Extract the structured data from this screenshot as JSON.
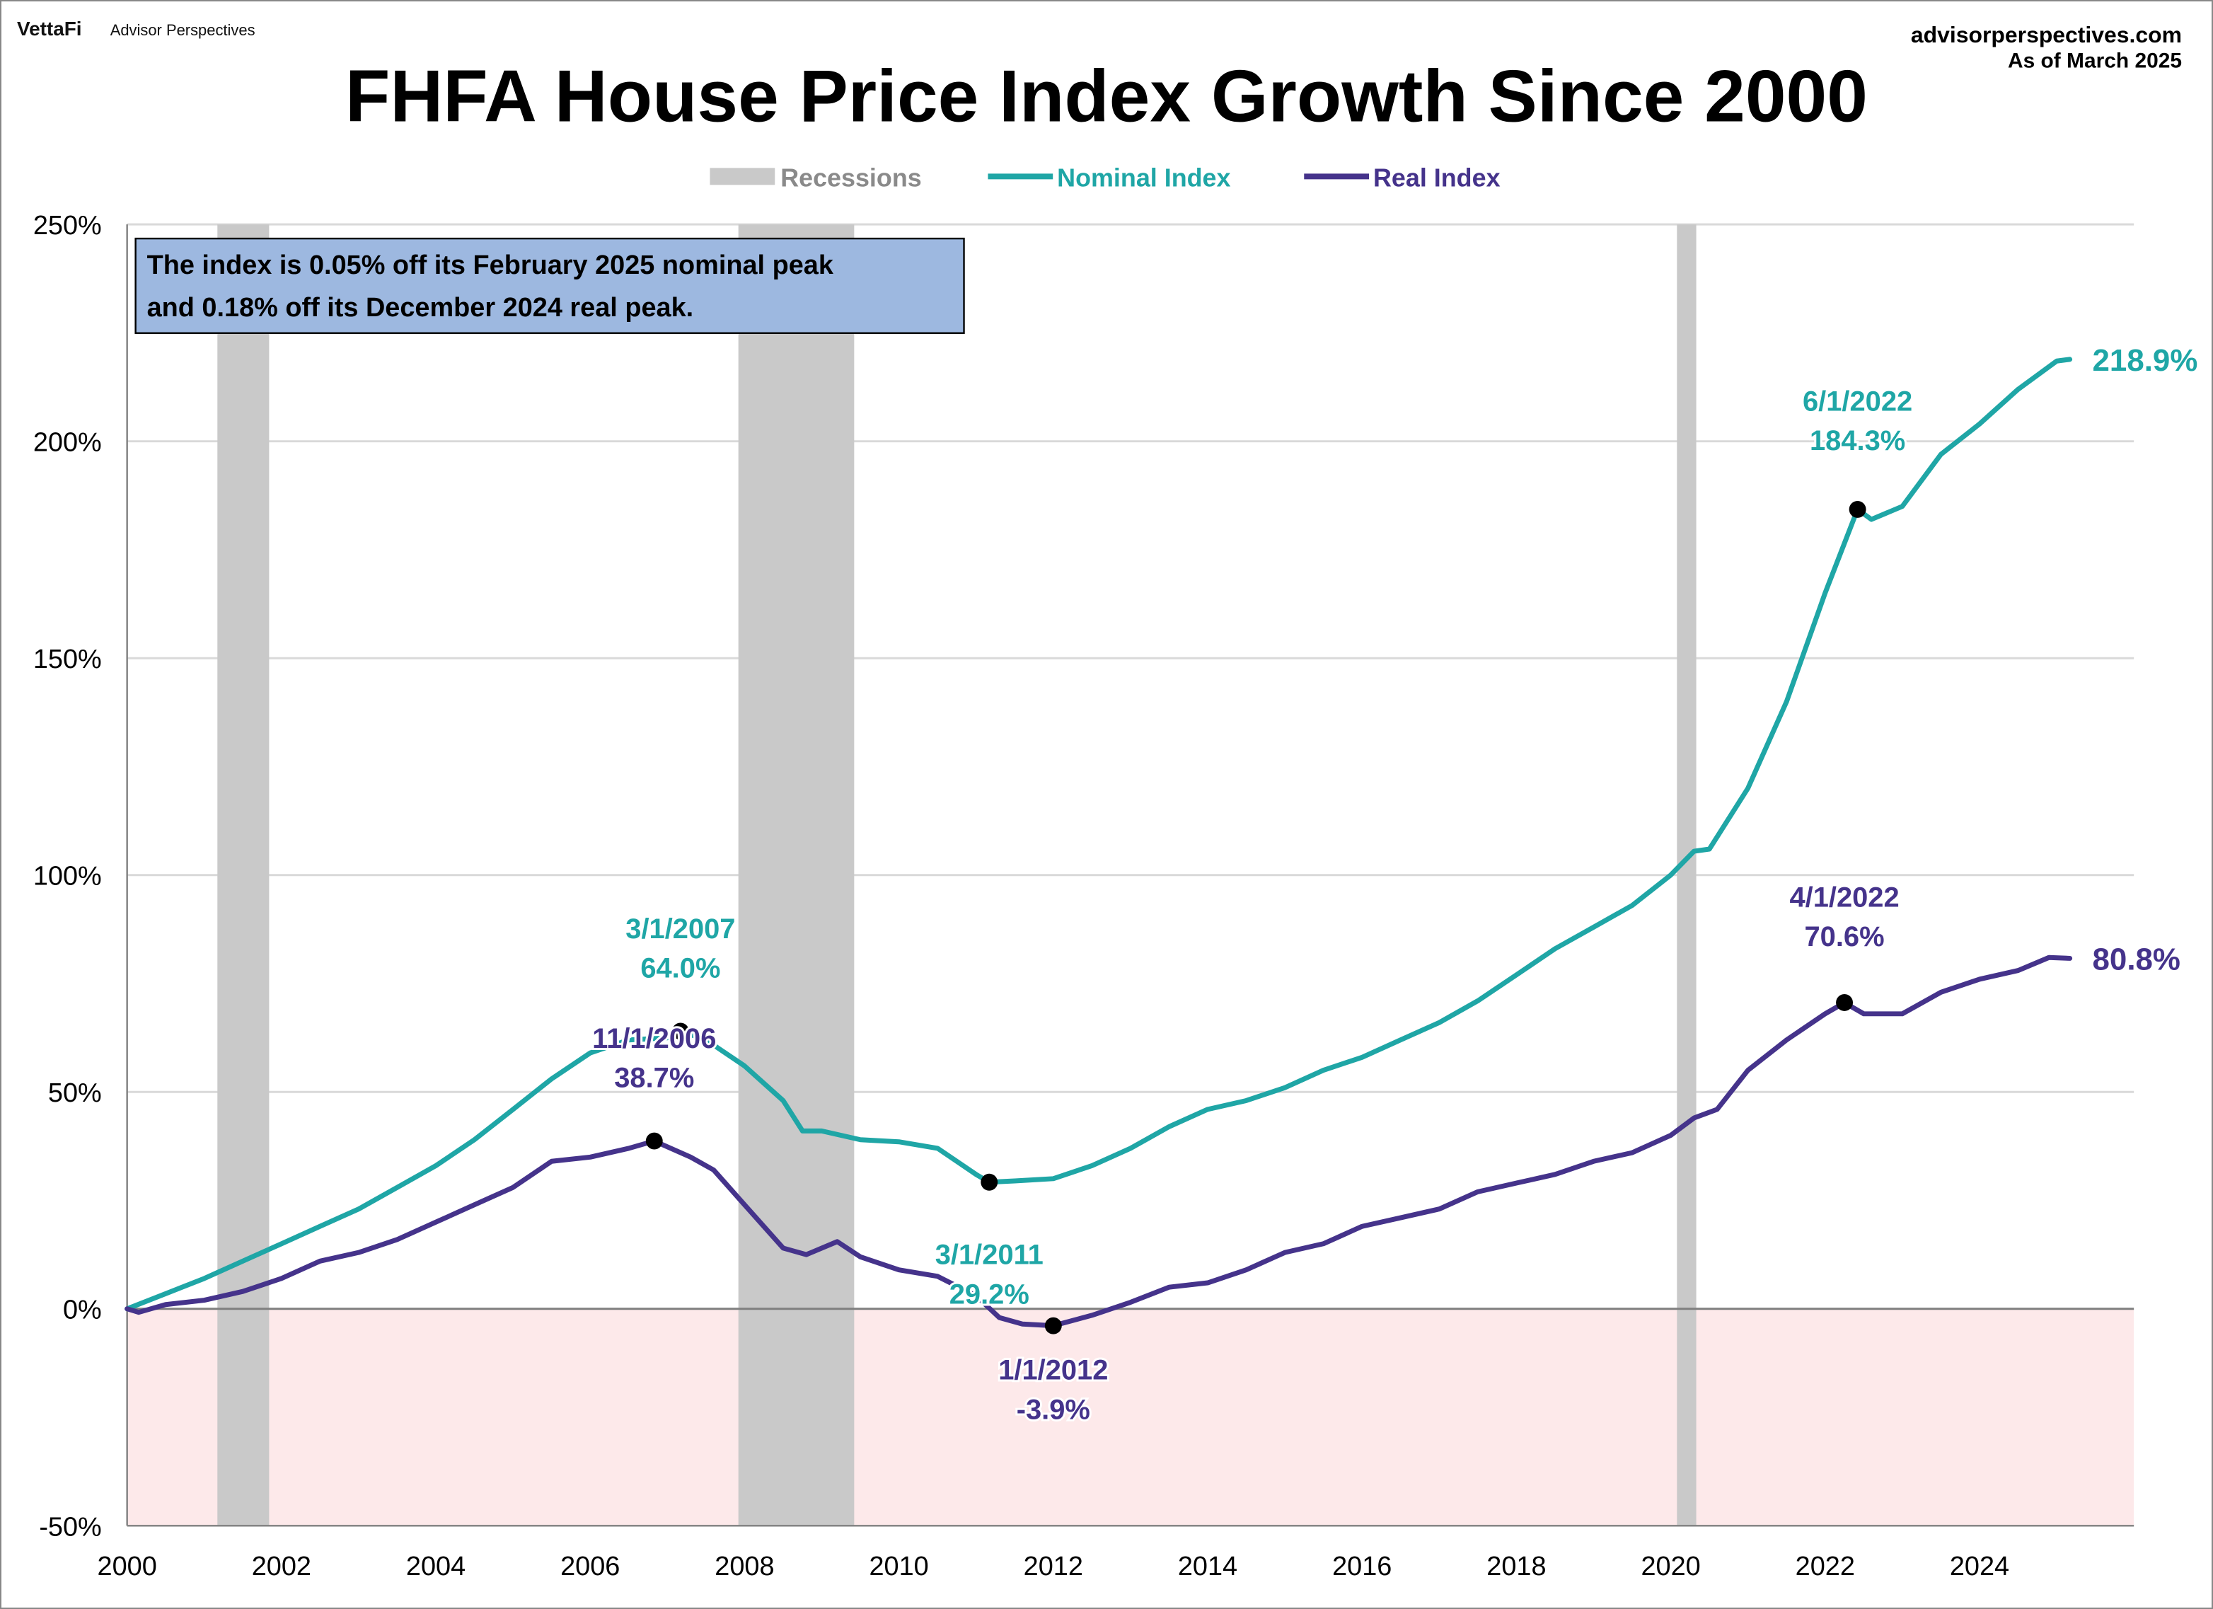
{
  "brand": {
    "logo": "VettaFi",
    "name": "Advisor Perspectives"
  },
  "source": {
    "site": "advisorperspectives.com",
    "as_of": "As of March 2025"
  },
  "colors": {
    "nominal": "#1fa6a6",
    "real": "#45338b",
    "recession": "#c9c9c9",
    "negative_zone": "#fde9ea",
    "annotation_box": "#9db8e0"
  },
  "note": {
    "line1": "The index is 0.05% off its February 2025 nominal peak",
    "line2": "and 0.18% off its December 2024 real peak."
  },
  "chart_data": {
    "type": "line",
    "title": "FHFA House Price Index Growth Since 2000",
    "legend": {
      "placement": "top-center",
      "entries": [
        "Recessions",
        "Nominal Index",
        "Real Index"
      ]
    },
    "ylim": [
      -50,
      250
    ],
    "xlim": [
      2000,
      2026
    ],
    "y_ticks": [
      "-50%",
      "0%",
      "50%",
      "100%",
      "150%",
      "200%",
      "250%"
    ],
    "y_tick_values": [
      -50,
      0,
      50,
      100,
      150,
      200,
      250
    ],
    "x_ticks": [
      "2000",
      "2002",
      "2004",
      "2006",
      "2008",
      "2010",
      "2012",
      "2014",
      "2016",
      "2018",
      "2020",
      "2022",
      "2024"
    ],
    "grid": true,
    "recessions": [
      [
        2001.17,
        2001.84
      ],
      [
        2007.92,
        2009.42
      ],
      [
        2020.08,
        2020.33
      ]
    ],
    "series": [
      {
        "name": "Nominal Index",
        "x": [
          2000,
          2000.5,
          2001,
          2001.5,
          2002,
          2002.5,
          2003,
          2003.5,
          2004,
          2004.5,
          2005,
          2005.5,
          2006,
          2006.5,
          2007,
          2007.17,
          2007.5,
          2008,
          2008.5,
          2008.75,
          2009,
          2009.5,
          2010,
          2010.5,
          2011,
          2011.17,
          2011.5,
          2012,
          2012.5,
          2013,
          2013.5,
          2014,
          2014.5,
          2015,
          2015.5,
          2016,
          2016.5,
          2017,
          2017.5,
          2018,
          2018.5,
          2019,
          2019.5,
          2020,
          2020.3,
          2020.5,
          2021,
          2021.5,
          2022,
          2022.42,
          2022.6,
          2023,
          2023.5,
          2024,
          2024.5,
          2025,
          2025.17
        ],
        "y": [
          0,
          3.5,
          7,
          11,
          15,
          19,
          23,
          28,
          33,
          39,
          46,
          53,
          59,
          62,
          62.5,
          64,
          62,
          56,
          48,
          41,
          41,
          39,
          38.5,
          37,
          31,
          29.2,
          29.5,
          30,
          33,
          37,
          42,
          46,
          48,
          51,
          55,
          58,
          62,
          66,
          71,
          77,
          83,
          88,
          93,
          100,
          105.5,
          106,
          120,
          140,
          165,
          184.3,
          182,
          185,
          197,
          204,
          212,
          218.5,
          218.9
        ]
      },
      {
        "name": "Real Index",
        "x": [
          2000,
          2000.15,
          2000.5,
          2001,
          2001.5,
          2002,
          2002.5,
          2003,
          2003.5,
          2004,
          2004.5,
          2005,
          2005.5,
          2006,
          2006.5,
          2006.83,
          2007.3,
          2007.6,
          2008,
          2008.5,
          2008.8,
          2009.2,
          2009.5,
          2010,
          2010.5,
          2011,
          2011.3,
          2011.6,
          2012,
          2012.5,
          2013,
          2013.5,
          2014,
          2014.5,
          2015,
          2015.5,
          2016,
          2016.5,
          2017,
          2017.5,
          2018,
          2018.5,
          2019,
          2019.5,
          2020,
          2020.3,
          2020.6,
          2021,
          2021.5,
          2022,
          2022.25,
          2022.5,
          2023,
          2023.5,
          2024,
          2024.5,
          2024.9,
          2025.17
        ],
        "y": [
          0,
          -0.8,
          1,
          2,
          4,
          7,
          11,
          13,
          16,
          20,
          24,
          28,
          34,
          35,
          37,
          38.7,
          35,
          32,
          24,
          14,
          12.5,
          15.5,
          12,
          9,
          7.5,
          3,
          -2,
          -3.5,
          -3.9,
          -1.5,
          1.5,
          5,
          6,
          9,
          13,
          15,
          19,
          21,
          23,
          27,
          29,
          31,
          34,
          36,
          40,
          44,
          46,
          55,
          62,
          68,
          70.6,
          68,
          68,
          73,
          76,
          78,
          81,
          80.8
        ]
      }
    ],
    "annotations": [
      {
        "series": "Nominal Index",
        "date": "3/1/2007",
        "value": "64.0%",
        "x": 2007.17,
        "y": 64.0
      },
      {
        "series": "Real Index",
        "date": "11/1/2006",
        "value": "38.7%",
        "x": 2006.83,
        "y": 38.7
      },
      {
        "series": "Nominal Index",
        "date": "3/1/2011",
        "value": "29.2%",
        "x": 2011.17,
        "y": 29.2
      },
      {
        "series": "Real Index",
        "date": "1/1/2012",
        "value": "-3.9%",
        "x": 2012.0,
        "y": -3.9
      },
      {
        "series": "Nominal Index",
        "date": "6/1/2022",
        "value": "184.3%",
        "x": 2022.42,
        "y": 184.3
      },
      {
        "series": "Real Index",
        "date": "4/1/2022",
        "value": "70.6%",
        "x": 2022.25,
        "y": 70.6
      }
    ],
    "end_labels": [
      {
        "series": "Nominal Index",
        "value": "218.9%"
      },
      {
        "series": "Real Index",
        "value": "80.8%"
      }
    ]
  }
}
